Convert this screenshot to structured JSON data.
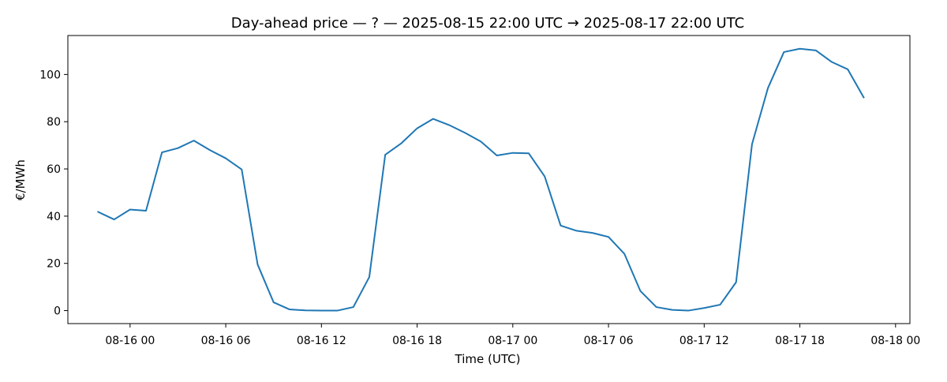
{
  "chart_data": {
    "type": "line",
    "title": "Day-ahead price — ? — 2025-08-15 22:00 UTC → 2025-08-17 22:00 UTC",
    "xlabel": "Time (UTC)",
    "ylabel": "€/MWh",
    "xlim": [
      "2025-08-15 20:06",
      "2025-08-18 00:54"
    ],
    "ylim": [
      -5.5,
      116.5
    ],
    "x_ticks": [
      {
        "label": "08-16 00",
        "value": "2025-08-16 00:00"
      },
      {
        "label": "08-16 06",
        "value": "2025-08-16 06:00"
      },
      {
        "label": "08-16 12",
        "value": "2025-08-16 12:00"
      },
      {
        "label": "08-16 18",
        "value": "2025-08-16 18:00"
      },
      {
        "label": "08-17 00",
        "value": "2025-08-17 00:00"
      },
      {
        "label": "08-17 06",
        "value": "2025-08-17 06:00"
      },
      {
        "label": "08-17 12",
        "value": "2025-08-17 12:00"
      },
      {
        "label": "08-17 18",
        "value": "2025-08-17 18:00"
      },
      {
        "label": "08-18 00",
        "value": "2025-08-18 00:00"
      }
    ],
    "y_ticks": [
      0,
      20,
      40,
      60,
      80,
      100
    ],
    "grid": false,
    "color": "#1f77b4",
    "series": [
      {
        "x": [
          "2025-08-15 22:00",
          "2025-08-15 23:00",
          "2025-08-16 00:00",
          "2025-08-16 01:00",
          "2025-08-16 02:00",
          "2025-08-16 03:00",
          "2025-08-16 04:00",
          "2025-08-16 05:00",
          "2025-08-16 06:00",
          "2025-08-16 07:00",
          "2025-08-16 08:00",
          "2025-08-16 09:00",
          "2025-08-16 10:00",
          "2025-08-16 11:00",
          "2025-08-16 12:00",
          "2025-08-16 13:00",
          "2025-08-16 14:00",
          "2025-08-16 15:00",
          "2025-08-16 16:00",
          "2025-08-16 17:00",
          "2025-08-16 18:00",
          "2025-08-16 19:00",
          "2025-08-16 20:00",
          "2025-08-16 21:00",
          "2025-08-16 22:00",
          "2025-08-16 23:00",
          "2025-08-17 00:00",
          "2025-08-17 01:00",
          "2025-08-17 02:00",
          "2025-08-17 03:00",
          "2025-08-17 04:00",
          "2025-08-17 05:00",
          "2025-08-17 06:00",
          "2025-08-17 07:00",
          "2025-08-17 08:00",
          "2025-08-17 09:00",
          "2025-08-17 10:00",
          "2025-08-17 11:00",
          "2025-08-17 12:00",
          "2025-08-17 13:00",
          "2025-08-17 14:00",
          "2025-08-17 15:00",
          "2025-08-17 16:00",
          "2025-08-17 17:00",
          "2025-08-17 18:00",
          "2025-08-17 19:00",
          "2025-08-17 20:00",
          "2025-08-17 21:00",
          "2025-08-17 22:00"
        ],
        "values": [
          41.8,
          38.6,
          42.8,
          42.3,
          67.0,
          68.8,
          72.0,
          68.0,
          64.5,
          59.8,
          19.5,
          3.5,
          0.5,
          0.1,
          0.0,
          0.0,
          1.5,
          14.2,
          66.0,
          70.8,
          77.2,
          81.2,
          78.6,
          75.3,
          71.6,
          65.7,
          66.8,
          66.6,
          56.8,
          36.0,
          33.8,
          32.9,
          31.2,
          24.0,
          8.3,
          1.5,
          0.3,
          0.0,
          1.1,
          2.5,
          12.0,
          70.5,
          94.3,
          109.5,
          110.9,
          110.2,
          105.3,
          102.2,
          90.3
        ]
      }
    ]
  }
}
